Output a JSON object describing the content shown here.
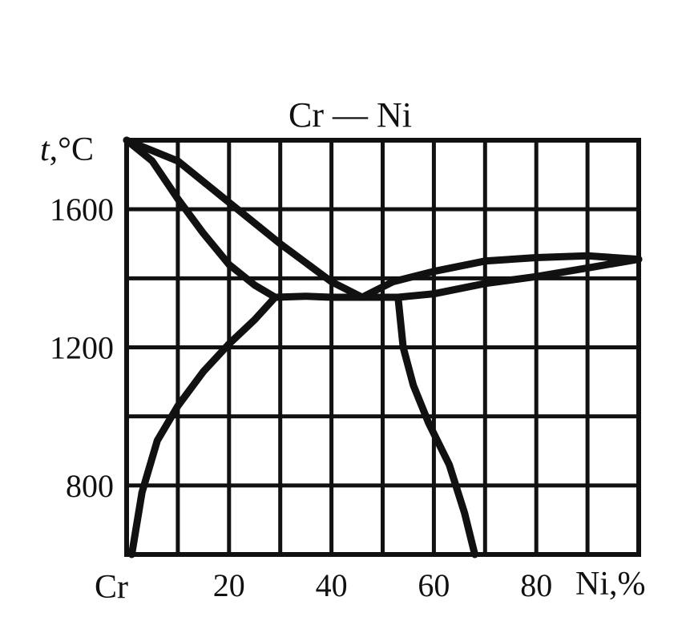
{
  "chart_data": {
    "type": "line",
    "title": "Cr — Ni",
    "ylabel_italic": "t",
    "ylabel_rest": ",°C",
    "xlabel": "Ni,%",
    "x_left_label": "Cr",
    "x_ticks": [
      {
        "value": 20,
        "label": "20"
      },
      {
        "value": 40,
        "label": "40"
      },
      {
        "value": 60,
        "label": "60"
      },
      {
        "value": 80,
        "label": "80"
      }
    ],
    "y_ticks": [
      {
        "value": 800,
        "label": "800"
      },
      {
        "value": 1200,
        "label": "1200"
      },
      {
        "value": 1600,
        "label": "1600"
      }
    ],
    "xlim": [
      0,
      100
    ],
    "ylim": [
      600,
      1800
    ],
    "grid": true,
    "colors": {
      "line": "#111111",
      "grid": "#111111",
      "background": "#ffffff"
    },
    "series": [
      {
        "key": "liquidus-cr-side",
        "x": [
          0,
          10,
          20,
          30,
          40,
          46
        ],
        "y": [
          1860,
          1740,
          1620,
          1500,
          1390,
          1345
        ]
      },
      {
        "key": "solidus-cr-side",
        "x": [
          0,
          5,
          10,
          15,
          20,
          25,
          29
        ],
        "y": [
          1850,
          1740,
          1630,
          1530,
          1440,
          1380,
          1345
        ]
      },
      {
        "key": "eutectic-line",
        "x": [
          29,
          35,
          40,
          45,
          50,
          53
        ],
        "y": [
          1345,
          1348,
          1345,
          1345,
          1345,
          1345
        ]
      },
      {
        "key": "liquidus-ni-side",
        "x": [
          46,
          52,
          60,
          70,
          80,
          90,
          100
        ],
        "y": [
          1345,
          1390,
          1420,
          1450,
          1460,
          1465,
          1455
        ]
      },
      {
        "key": "solidus-ni-side",
        "x": [
          53,
          60,
          70,
          80,
          90,
          100
        ],
        "y": [
          1345,
          1355,
          1385,
          1405,
          1430,
          1455
        ]
      },
      {
        "key": "solvus-cr-side",
        "x": [
          1,
          3,
          6,
          10,
          15,
          20,
          25,
          29
        ],
        "y": [
          600,
          780,
          930,
          1030,
          1130,
          1210,
          1280,
          1345
        ]
      },
      {
        "key": "solvus-ni-side",
        "x": [
          53,
          54,
          56,
          59,
          63,
          66,
          68
        ],
        "y": [
          1345,
          1200,
          1090,
          980,
          860,
          720,
          600
        ]
      }
    ]
  }
}
